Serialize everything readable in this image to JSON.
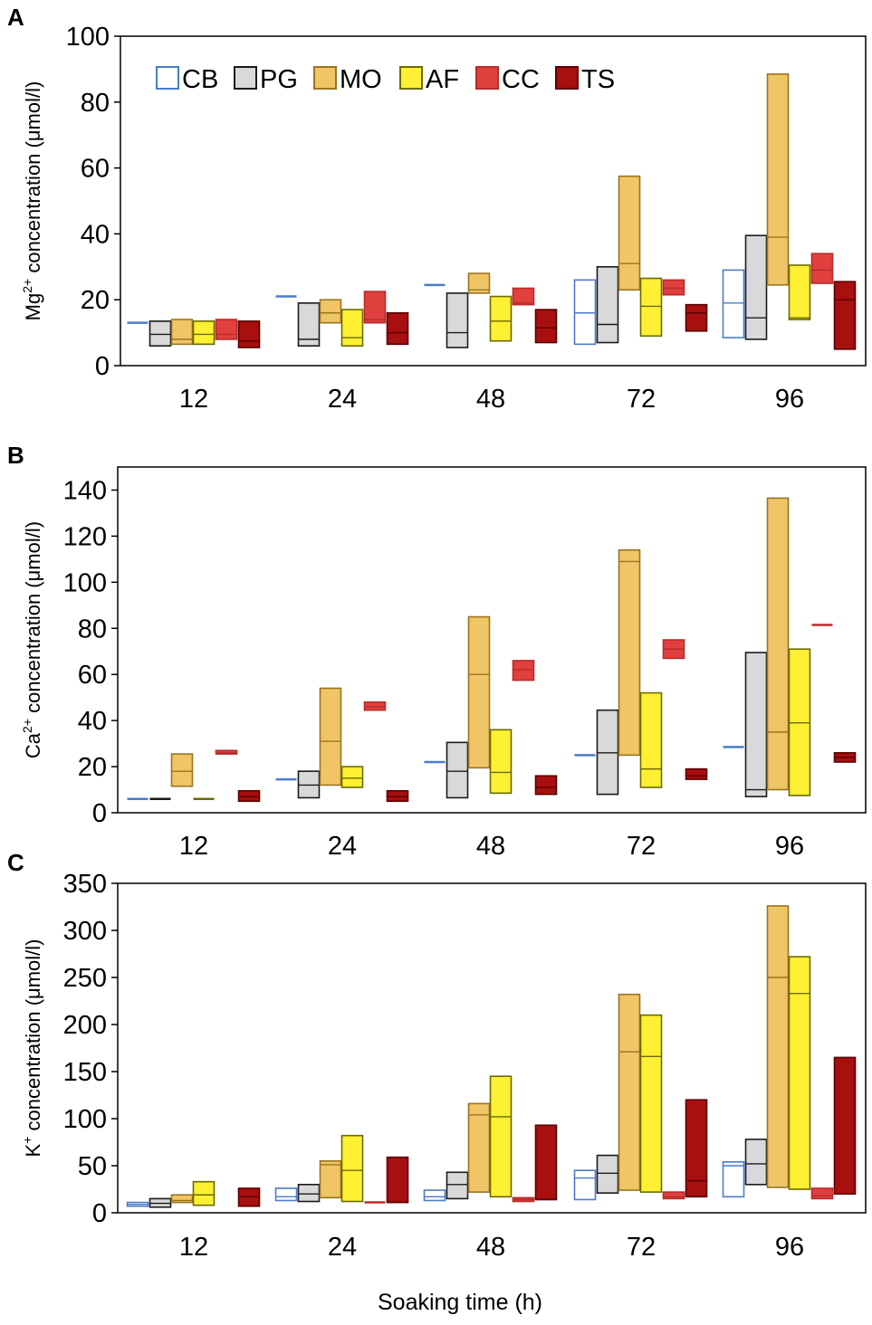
{
  "figure": {
    "xlabel": "Soaking time (h)"
  },
  "colors": {
    "CB": {
      "fill": "#ffffff",
      "stroke": "#4a7cc8"
    },
    "PG": {
      "fill": "#d9d9d9",
      "stroke": "#1a1a1a"
    },
    "MO": {
      "fill": "#f0c566",
      "stroke": "#9a7420"
    },
    "AF": {
      "fill": "#fff033",
      "stroke": "#6b6b00"
    },
    "CC": {
      "fill": "#e0403e",
      "stroke": "#b82b2a"
    },
    "TS": {
      "fill": "#a80f0f",
      "stroke": "#5a0000"
    }
  },
  "legend": [
    "CB",
    "PG",
    "MO",
    "AF",
    "CC",
    "TS"
  ],
  "chart_data": [
    {
      "panel": "A",
      "type": "floating-bar",
      "ylabel_main": "Mg",
      "ylabel_sup": "2+",
      "ylabel_rest": " concentration (μmol/l)",
      "ylim": [
        0,
        100
      ],
      "yticks": [
        "0",
        "20",
        "40",
        "60",
        "80",
        "100"
      ],
      "categories": [
        "12",
        "24",
        "48",
        "72",
        "96"
      ],
      "series": [
        {
          "name": "CB",
          "boxes": [
            [
              13,
              13,
              13
            ],
            [
              21,
              21,
              21
            ],
            [
              24.5,
              24.5,
              24.5
            ],
            [
              6.5,
              16,
              26
            ],
            [
              8.5,
              19,
              29
            ]
          ]
        },
        {
          "name": "PG",
          "boxes": [
            [
              6,
              9.5,
              13.5
            ],
            [
              6,
              8,
              19
            ],
            [
              5.5,
              10,
              22
            ],
            [
              7,
              12.5,
              30
            ],
            [
              8,
              14.5,
              39.5
            ]
          ]
        },
        {
          "name": "MO",
          "boxes": [
            [
              6.5,
              8,
              14
            ],
            [
              13,
              16,
              20
            ],
            [
              22,
              23,
              28
            ],
            [
              23,
              31,
              57.5
            ],
            [
              24.5,
              39,
              88.5
            ]
          ]
        },
        {
          "name": "AF",
          "boxes": [
            [
              6.5,
              9.5,
              13.5
            ],
            [
              6,
              8.5,
              17
            ],
            [
              7.5,
              13.5,
              21
            ],
            [
              9,
              18,
              26.5
            ],
            [
              14,
              14.5,
              30.5
            ]
          ]
        },
        {
          "name": "CC",
          "boxes": [
            [
              8,
              9.5,
              14
            ],
            [
              13,
              14,
              22.5
            ],
            [
              18.5,
              19,
              23.5
            ],
            [
              21.5,
              23.5,
              26
            ],
            [
              25,
              29,
              34
            ]
          ]
        },
        {
          "name": "TS",
          "boxes": [
            [
              5.5,
              7.5,
              13.5
            ],
            [
              6.5,
              10,
              16
            ],
            [
              7,
              11.5,
              17
            ],
            [
              10.5,
              16,
              18.5
            ],
            [
              5,
              20,
              25.5
            ]
          ]
        }
      ]
    },
    {
      "panel": "B",
      "type": "floating-bar",
      "ylabel_main": "Ca",
      "ylabel_sup": "2+",
      "ylabel_rest": " concentration (μmol/l)",
      "ylim": [
        0,
        150
      ],
      "yticks": [
        "0",
        "20",
        "40",
        "60",
        "80",
        "100",
        "120",
        "140"
      ],
      "categories": [
        "12",
        "24",
        "48",
        "72",
        "96"
      ],
      "series": [
        {
          "name": "CB",
          "boxes": [
            [
              6,
              6,
              6
            ],
            [
              14.5,
              14.5,
              14.5
            ],
            [
              22,
              22,
              22
            ],
            [
              25,
              25,
              25
            ],
            [
              28.5,
              28.5,
              28.5
            ]
          ]
        },
        {
          "name": "PG",
          "boxes": [
            [
              6,
              6,
              6
            ],
            [
              6.5,
              12,
              18
            ],
            [
              6.5,
              18,
              30.5
            ],
            [
              8,
              26,
              44.5
            ],
            [
              7,
              10,
              69.5
            ]
          ]
        },
        {
          "name": "MO",
          "boxes": [
            [
              11.5,
              18,
              25.5
            ],
            [
              12,
              31,
              54
            ],
            [
              19.5,
              60,
              85
            ],
            [
              25,
              109,
              114
            ],
            [
              10,
              35,
              136.5
            ]
          ]
        },
        {
          "name": "AF",
          "boxes": [
            [
              6,
              6,
              6
            ],
            [
              11,
              15,
              20
            ],
            [
              8.5,
              17.5,
              36
            ],
            [
              11,
              19,
              52
            ],
            [
              7.5,
              39,
              71
            ]
          ]
        },
        {
          "name": "CC",
          "boxes": [
            [
              25.5,
              26,
              27
            ],
            [
              44.5,
              46,
              48
            ],
            [
              57.5,
              62,
              66
            ],
            [
              67,
              71,
              75
            ],
            [
              81.5,
              81.5,
              81.5
            ]
          ]
        },
        {
          "name": "TS",
          "boxes": [
            [
              5,
              7,
              9.5
            ],
            [
              5,
              7,
              9.5
            ],
            [
              8,
              11,
              16
            ],
            [
              14.5,
              16,
              19
            ],
            [
              22,
              24,
              26
            ]
          ]
        }
      ]
    },
    {
      "panel": "C",
      "type": "floating-bar",
      "ylabel_main": "K",
      "ylabel_sup": "+",
      "ylabel_rest": " concentration (μmol/l)",
      "ylim": [
        0,
        350
      ],
      "yticks": [
        "0",
        "50",
        "100",
        "150",
        "200",
        "250",
        "300",
        "350"
      ],
      "categories": [
        "12",
        "24",
        "48",
        "72",
        "96"
      ],
      "series": [
        {
          "name": "CB",
          "boxes": [
            [
              7,
              9,
              11
            ],
            [
              13,
              17,
              26
            ],
            [
              13,
              17,
              24
            ],
            [
              14,
              37,
              45
            ],
            [
              17,
              50,
              54
            ]
          ]
        },
        {
          "name": "PG",
          "boxes": [
            [
              6,
              10,
              15
            ],
            [
              12,
              20,
              30
            ],
            [
              15,
              30,
              43
            ],
            [
              21,
              42,
              61
            ],
            [
              30,
              52,
              78
            ]
          ]
        },
        {
          "name": "MO",
          "boxes": [
            [
              11,
              13,
              19
            ],
            [
              16,
              51,
              55
            ],
            [
              22,
              104,
              116
            ],
            [
              24,
              171,
              232
            ],
            [
              27,
              250,
              326
            ]
          ]
        },
        {
          "name": "AF",
          "boxes": [
            [
              8,
              19,
              33
            ],
            [
              12,
              45,
              82
            ],
            [
              17,
              102,
              145
            ],
            [
              22,
              166,
              210
            ],
            [
              25,
              233,
              272
            ]
          ]
        },
        {
          "name": "CC",
          "boxes": [
            [
              null,
              null,
              null
            ],
            [
              11,
              11,
              11
            ],
            [
              12,
              14,
              16
            ],
            [
              15,
              17,
              22
            ],
            [
              15,
              18,
              26
            ]
          ]
        },
        {
          "name": "TS",
          "boxes": [
            [
              7,
              17,
              26
            ],
            [
              11,
              11,
              59
            ],
            [
              14,
              14,
              93
            ],
            [
              17,
              34,
              120
            ],
            [
              20,
              20,
              165
            ]
          ]
        }
      ]
    }
  ]
}
